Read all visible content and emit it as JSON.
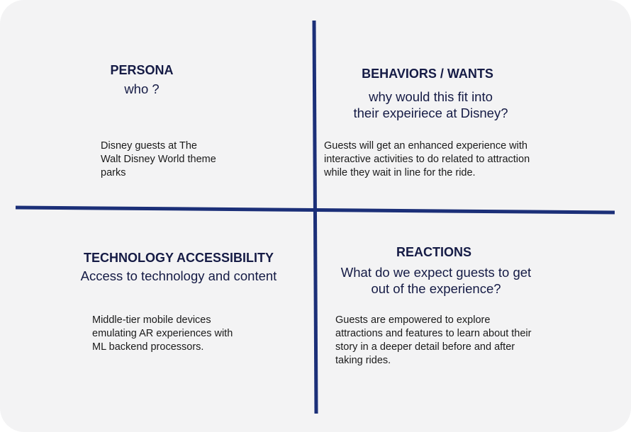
{
  "quadrants": {
    "persona": {
      "title": "PERSONA",
      "subtitle": "who ?",
      "body": [
        "Disney guests at The",
        "Walt Disney World theme",
        "parks"
      ]
    },
    "behaviors": {
      "title": "BEHAVIORS / WANTS",
      "subtitle": [
        "why would this fit into",
        "their expeiriece at Disney?"
      ],
      "body": [
        "Guests will get an enhanced experience with",
        "interactive activities to do related to attraction",
        "while they wait in line for the ride."
      ]
    },
    "technology": {
      "title": "TECHNOLOGY ACCESSIBILITY",
      "subtitle": "Access to technology and content",
      "body": [
        "Middle-tier mobile devices",
        "emulating AR experiences with",
        "ML backend processors."
      ]
    },
    "reactions": {
      "title": "REACTIONS",
      "subtitle": [
        "What do we expect guests to get",
        "out of the experience?"
      ],
      "body": [
        "Guests are empowered to explore",
        "attractions and features to learn about their",
        "story in a deeper detail before and after",
        "taking rides."
      ]
    }
  },
  "colors": {
    "axis": "#1b2f78",
    "heading": "#151b45",
    "background": "#f3f3f4"
  }
}
